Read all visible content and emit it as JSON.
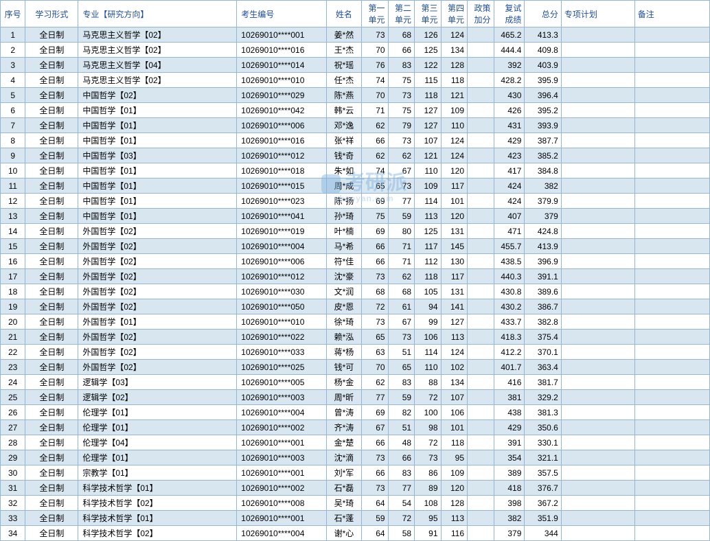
{
  "headers": {
    "seq": "序号",
    "study_form": "学习形式",
    "major": "专业【研究方向】",
    "exam_no": "考生编号",
    "name": "姓名",
    "unit1": "第一",
    "unit1b": "单元",
    "unit2": "第二",
    "unit2b": "单元",
    "unit3": "第三",
    "unit3b": "单元",
    "unit4": "第四",
    "unit4b": "单元",
    "bonus": "政策",
    "bonusb": "加分",
    "reexam": "复试",
    "reexamb": "成绩",
    "total": "总分",
    "plan": "专项计划",
    "remark": "备注"
  },
  "watermark": {
    "text": "考研派",
    "sub": "okaoyan.com"
  },
  "rows": [
    {
      "seq": 1,
      "form": "全日制",
      "major": "马克思主义哲学【02】",
      "examno": "10269010****001",
      "name": "姜*然",
      "u1": 73,
      "u2": 68,
      "u3": 126,
      "u4": 124,
      "bonus": "",
      "reexam": "465.2",
      "total": "413.3",
      "plan": "",
      "remark": ""
    },
    {
      "seq": 2,
      "form": "全日制",
      "major": "马克思主义哲学【02】",
      "examno": "10269010****016",
      "name": "王*杰",
      "u1": 70,
      "u2": 66,
      "u3": 125,
      "u4": 134,
      "bonus": "",
      "reexam": "444.4",
      "total": "409.8",
      "plan": "",
      "remark": ""
    },
    {
      "seq": 3,
      "form": "全日制",
      "major": "马克思主义哲学【04】",
      "examno": "10269010****014",
      "name": "祝*瑶",
      "u1": 76,
      "u2": 83,
      "u3": 122,
      "u4": 128,
      "bonus": "",
      "reexam": "392",
      "total": "403.9",
      "plan": "",
      "remark": ""
    },
    {
      "seq": 4,
      "form": "全日制",
      "major": "马克思主义哲学【02】",
      "examno": "10269010****010",
      "name": "任*杰",
      "u1": 74,
      "u2": 75,
      "u3": 115,
      "u4": 118,
      "bonus": "",
      "reexam": "428.2",
      "total": "395.9",
      "plan": "",
      "remark": ""
    },
    {
      "seq": 5,
      "form": "全日制",
      "major": "中国哲学【02】",
      "examno": "10269010****029",
      "name": "陈*燕",
      "u1": 70,
      "u2": 73,
      "u3": 118,
      "u4": 121,
      "bonus": "",
      "reexam": "430",
      "total": "396.4",
      "plan": "",
      "remark": ""
    },
    {
      "seq": 6,
      "form": "全日制",
      "major": "中国哲学【01】",
      "examno": "10269010****042",
      "name": "韩*云",
      "u1": 71,
      "u2": 75,
      "u3": 127,
      "u4": 109,
      "bonus": "",
      "reexam": "426",
      "total": "395.2",
      "plan": "",
      "remark": ""
    },
    {
      "seq": 7,
      "form": "全日制",
      "major": "中国哲学【01】",
      "examno": "10269010****006",
      "name": "邓*逸",
      "u1": 62,
      "u2": 79,
      "u3": 127,
      "u4": 110,
      "bonus": "",
      "reexam": "431",
      "total": "393.9",
      "plan": "",
      "remark": ""
    },
    {
      "seq": 8,
      "form": "全日制",
      "major": "中国哲学【01】",
      "examno": "10269010****016",
      "name": "张*祥",
      "u1": 66,
      "u2": 73,
      "u3": 107,
      "u4": 124,
      "bonus": "",
      "reexam": "429",
      "total": "387.7",
      "plan": "",
      "remark": ""
    },
    {
      "seq": 9,
      "form": "全日制",
      "major": "中国哲学【03】",
      "examno": "10269010****012",
      "name": "钱*奇",
      "u1": 62,
      "u2": 62,
      "u3": 121,
      "u4": 124,
      "bonus": "",
      "reexam": "423",
      "total": "385.2",
      "plan": "",
      "remark": ""
    },
    {
      "seq": 10,
      "form": "全日制",
      "major": "中国哲学【01】",
      "examno": "10269010****018",
      "name": "朱*如",
      "u1": 74,
      "u2": 67,
      "u3": 110,
      "u4": 120,
      "bonus": "",
      "reexam": "417",
      "total": "384.8",
      "plan": "",
      "remark": ""
    },
    {
      "seq": 11,
      "form": "全日制",
      "major": "中国哲学【01】",
      "examno": "10269010****015",
      "name": "周*成",
      "u1": 65,
      "u2": 73,
      "u3": 109,
      "u4": 117,
      "bonus": "",
      "reexam": "424",
      "total": "382",
      "plan": "",
      "remark": ""
    },
    {
      "seq": 12,
      "form": "全日制",
      "major": "中国哲学【01】",
      "examno": "10269010****023",
      "name": "陈*扬",
      "u1": 69,
      "u2": 77,
      "u3": 114,
      "u4": 101,
      "bonus": "",
      "reexam": "424",
      "total": "379.9",
      "plan": "",
      "remark": ""
    },
    {
      "seq": 13,
      "form": "全日制",
      "major": "中国哲学【01】",
      "examno": "10269010****041",
      "name": "孙*琦",
      "u1": 75,
      "u2": 59,
      "u3": 113,
      "u4": 120,
      "bonus": "",
      "reexam": "407",
      "total": "379",
      "plan": "",
      "remark": ""
    },
    {
      "seq": 14,
      "form": "全日制",
      "major": "外国哲学【02】",
      "examno": "10269010****019",
      "name": "叶*楠",
      "u1": 69,
      "u2": 80,
      "u3": 125,
      "u4": 131,
      "bonus": "",
      "reexam": "471",
      "total": "424.8",
      "plan": "",
      "remark": ""
    },
    {
      "seq": 15,
      "form": "全日制",
      "major": "外国哲学【02】",
      "examno": "10269010****004",
      "name": "马*希",
      "u1": 66,
      "u2": 71,
      "u3": 117,
      "u4": 145,
      "bonus": "",
      "reexam": "455.7",
      "total": "413.9",
      "plan": "",
      "remark": ""
    },
    {
      "seq": 16,
      "form": "全日制",
      "major": "外国哲学【02】",
      "examno": "10269010****006",
      "name": "符*佳",
      "u1": 66,
      "u2": 71,
      "u3": 112,
      "u4": 130,
      "bonus": "",
      "reexam": "438.5",
      "total": "396.9",
      "plan": "",
      "remark": ""
    },
    {
      "seq": 17,
      "form": "全日制",
      "major": "外国哲学【02】",
      "examno": "10269010****012",
      "name": "沈*豪",
      "u1": 73,
      "u2": 62,
      "u3": 118,
      "u4": 117,
      "bonus": "",
      "reexam": "440.3",
      "total": "391.1",
      "plan": "",
      "remark": ""
    },
    {
      "seq": 18,
      "form": "全日制",
      "major": "外国哲学【02】",
      "examno": "10269010****030",
      "name": "文*润",
      "u1": 68,
      "u2": 68,
      "u3": 105,
      "u4": 131,
      "bonus": "",
      "reexam": "430.8",
      "total": "389.6",
      "plan": "",
      "remark": ""
    },
    {
      "seq": 19,
      "form": "全日制",
      "major": "外国哲学【02】",
      "examno": "10269010****050",
      "name": "皮*恩",
      "u1": 72,
      "u2": 61,
      "u3": 94,
      "u4": 141,
      "bonus": "",
      "reexam": "430.2",
      "total": "386.7",
      "plan": "",
      "remark": ""
    },
    {
      "seq": 20,
      "form": "全日制",
      "major": "外国哲学【01】",
      "examno": "10269010****010",
      "name": "徐*琦",
      "u1": 73,
      "u2": 67,
      "u3": 99,
      "u4": 127,
      "bonus": "",
      "reexam": "433.7",
      "total": "382.8",
      "plan": "",
      "remark": ""
    },
    {
      "seq": 21,
      "form": "全日制",
      "major": "外国哲学【02】",
      "examno": "10269010****022",
      "name": "赖*泓",
      "u1": 65,
      "u2": 73,
      "u3": 106,
      "u4": 113,
      "bonus": "",
      "reexam": "418.3",
      "total": "375.4",
      "plan": "",
      "remark": ""
    },
    {
      "seq": 22,
      "form": "全日制",
      "major": "外国哲学【02】",
      "examno": "10269010****033",
      "name": "蒋*杨",
      "u1": 63,
      "u2": 51,
      "u3": 114,
      "u4": 124,
      "bonus": "",
      "reexam": "412.2",
      "total": "370.1",
      "plan": "",
      "remark": ""
    },
    {
      "seq": 23,
      "form": "全日制",
      "major": "外国哲学【02】",
      "examno": "10269010****025",
      "name": "钱*可",
      "u1": 70,
      "u2": 65,
      "u3": 110,
      "u4": 102,
      "bonus": "",
      "reexam": "401.7",
      "total": "363.4",
      "plan": "",
      "remark": ""
    },
    {
      "seq": 24,
      "form": "全日制",
      "major": "逻辑学【03】",
      "examno": "10269010****005",
      "name": "杨*金",
      "u1": 62,
      "u2": 83,
      "u3": 88,
      "u4": 134,
      "bonus": "",
      "reexam": "416",
      "total": "381.7",
      "plan": "",
      "remark": ""
    },
    {
      "seq": 25,
      "form": "全日制",
      "major": "逻辑学【02】",
      "examno": "10269010****003",
      "name": "周*昕",
      "u1": 77,
      "u2": 59,
      "u3": 72,
      "u4": 107,
      "bonus": "",
      "reexam": "381",
      "total": "329.2",
      "plan": "",
      "remark": ""
    },
    {
      "seq": 26,
      "form": "全日制",
      "major": "伦理学【01】",
      "examno": "10269010****004",
      "name": "曾*涛",
      "u1": 69,
      "u2": 82,
      "u3": 100,
      "u4": 106,
      "bonus": "",
      "reexam": "438",
      "total": "381.3",
      "plan": "",
      "remark": ""
    },
    {
      "seq": 27,
      "form": "全日制",
      "major": "伦理学【01】",
      "examno": "10269010****002",
      "name": "齐*涛",
      "u1": 67,
      "u2": 51,
      "u3": 98,
      "u4": 101,
      "bonus": "",
      "reexam": "429",
      "total": "350.6",
      "plan": "",
      "remark": ""
    },
    {
      "seq": 28,
      "form": "全日制",
      "major": "伦理学【04】",
      "examno": "10269010****001",
      "name": "金*楚",
      "u1": 66,
      "u2": 48,
      "u3": 72,
      "u4": 118,
      "bonus": "",
      "reexam": "391",
      "total": "330.1",
      "plan": "",
      "remark": ""
    },
    {
      "seq": 29,
      "form": "全日制",
      "major": "伦理学【01】",
      "examno": "10269010****003",
      "name": "沈*滴",
      "u1": 73,
      "u2": 66,
      "u3": 73,
      "u4": 95,
      "bonus": "",
      "reexam": "354",
      "total": "321.1",
      "plan": "",
      "remark": ""
    },
    {
      "seq": 30,
      "form": "全日制",
      "major": "宗教学【01】",
      "examno": "10269010****001",
      "name": "刘*军",
      "u1": 66,
      "u2": 83,
      "u3": 86,
      "u4": 109,
      "bonus": "",
      "reexam": "389",
      "total": "357.5",
      "plan": "",
      "remark": ""
    },
    {
      "seq": 31,
      "form": "全日制",
      "major": "科学技术哲学【01】",
      "examno": "10269010****002",
      "name": "石*磊",
      "u1": 73,
      "u2": 77,
      "u3": 89,
      "u4": 120,
      "bonus": "",
      "reexam": "418",
      "total": "376.7",
      "plan": "",
      "remark": ""
    },
    {
      "seq": 32,
      "form": "全日制",
      "major": "科学技术哲学【02】",
      "examno": "10269010****008",
      "name": "吴*琦",
      "u1": 64,
      "u2": 54,
      "u3": 108,
      "u4": 128,
      "bonus": "",
      "reexam": "398",
      "total": "367.2",
      "plan": "",
      "remark": ""
    },
    {
      "seq": 33,
      "form": "全日制",
      "major": "科学技术哲学【01】",
      "examno": "10269010****001",
      "name": "石*蓬",
      "u1": 59,
      "u2": 72,
      "u3": 95,
      "u4": 113,
      "bonus": "",
      "reexam": "382",
      "total": "351.9",
      "plan": "",
      "remark": ""
    },
    {
      "seq": 34,
      "form": "全日制",
      "major": "科学技术哲学【02】",
      "examno": "10269010****004",
      "name": "谢*心",
      "u1": 64,
      "u2": 58,
      "u3": 91,
      "u4": 116,
      "bonus": "",
      "reexam": "379",
      "total": "344",
      "plan": "",
      "remark": ""
    }
  ]
}
